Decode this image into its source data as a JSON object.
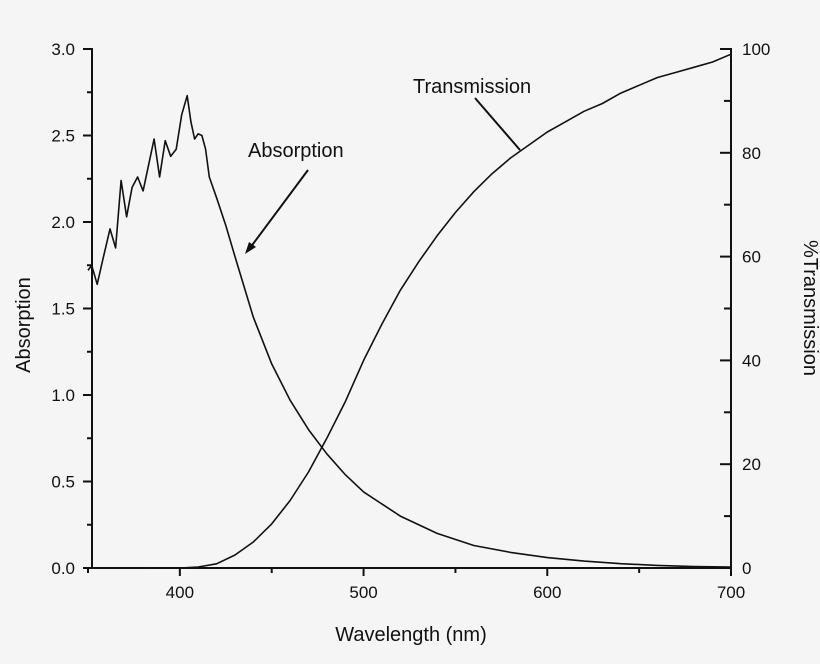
{
  "chart_data": {
    "type": "line",
    "title": "",
    "xlabel": "Wavelength (nm)",
    "ylabel": "Absorption",
    "y2label": "%Transmission",
    "xlim": [
      350,
      700
    ],
    "ylim": [
      0,
      3.0
    ],
    "y2lim": [
      0,
      100
    ],
    "grid": false,
    "x_ticks": [
      400,
      500,
      600,
      700
    ],
    "y_ticks": [
      "0.0",
      "0.5",
      "1.0",
      "1.5",
      "2.0",
      "2.5",
      "3.0"
    ],
    "y2_ticks": [
      "0",
      "20",
      "40",
      "60",
      "80",
      "100"
    ],
    "annotations": [
      {
        "text": "Absorption",
        "points_to": "absorption series near 435 nm"
      },
      {
        "text": "Transmission",
        "points_to": "transmission series near 590 nm"
      }
    ],
    "series": [
      {
        "name": "Absorption",
        "axis": "left",
        "x": [
          350,
          352,
          355,
          358,
          362,
          365,
          368,
          371,
          374,
          377,
          380,
          383,
          386,
          389,
          392,
          395,
          398,
          401,
          404,
          406,
          408,
          410,
          412,
          414,
          416,
          420,
          425,
          430,
          440,
          450,
          460,
          470,
          480,
          490,
          500,
          520,
          540,
          560,
          580,
          600,
          620,
          640,
          660,
          680,
          700
        ],
        "values": [
          1.72,
          1.75,
          1.64,
          1.78,
          1.96,
          1.85,
          2.24,
          2.03,
          2.2,
          2.26,
          2.18,
          2.33,
          2.48,
          2.26,
          2.47,
          2.38,
          2.42,
          2.62,
          2.73,
          2.58,
          2.48,
          2.51,
          2.5,
          2.42,
          2.26,
          2.14,
          1.98,
          1.8,
          1.45,
          1.18,
          0.97,
          0.8,
          0.66,
          0.54,
          0.44,
          0.3,
          0.2,
          0.13,
          0.09,
          0.06,
          0.04,
          0.025,
          0.015,
          0.008,
          0.005
        ]
      },
      {
        "name": "Transmission",
        "axis": "right",
        "x": [
          400,
          410,
          420,
          430,
          440,
          450,
          460,
          470,
          480,
          490,
          500,
          510,
          520,
          530,
          540,
          550,
          560,
          570,
          580,
          590,
          600,
          610,
          620,
          630,
          640,
          650,
          660,
          670,
          680,
          690,
          700
        ],
        "values": [
          0,
          0.2,
          0.8,
          2.5,
          5,
          8.5,
          13,
          18.5,
          25,
          32,
          40,
          47,
          53.5,
          59,
          64,
          68.5,
          72.5,
          76,
          79,
          81.5,
          84,
          86,
          88,
          89.5,
          91.5,
          93,
          94.5,
          95.5,
          96.5,
          97.5,
          99
        ]
      }
    ]
  },
  "annotations": {
    "absorption_label": "Absorption",
    "transmission_label": "Transmission"
  }
}
